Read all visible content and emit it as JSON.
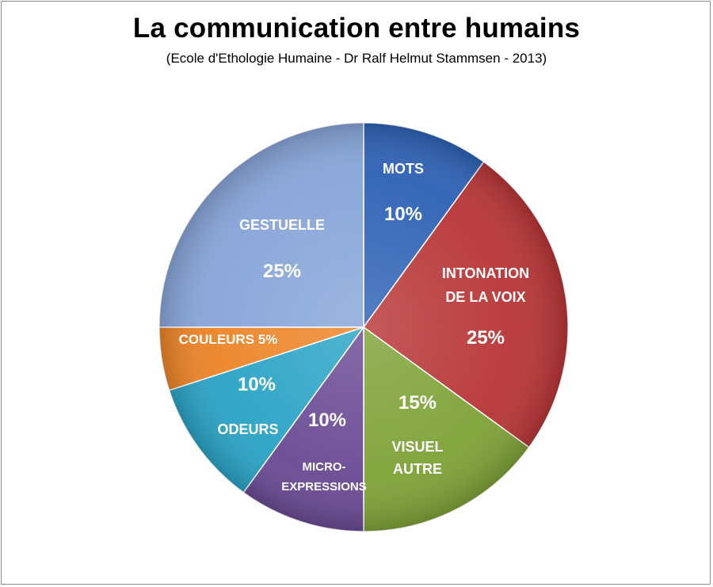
{
  "chart_data": {
    "type": "pie",
    "title": "La communication entre humains",
    "subtitle": "(Ecole d'Ethologie Humaine - Dr Ralf Helmut Stammsen - 2013)",
    "slices": [
      {
        "label": "MOTS",
        "value": 10,
        "value_label": "10%",
        "color": "#2e62b5"
      },
      {
        "label": "INTONATION DE LA VOIX",
        "value": 25,
        "value_label": "25%",
        "color": "#b83536"
      },
      {
        "label": "VISUEL AUTRE",
        "value": 15,
        "value_label": "15%",
        "color": "#7ea237"
      },
      {
        "label": "MICRO-EXPRESSIONS",
        "value": 10,
        "value_label": "10%",
        "color": "#6a4a94"
      },
      {
        "label": "ODEURS",
        "value": 10,
        "value_label": "10%",
        "color": "#2aa3c6"
      },
      {
        "label": "COULEURS",
        "value": 5,
        "value_label": "5%",
        "color": "#ec8427"
      },
      {
        "label": "GESTUELLE",
        "value": 25,
        "value_label": "25%",
        "color": "#87a5d9"
      }
    ]
  }
}
